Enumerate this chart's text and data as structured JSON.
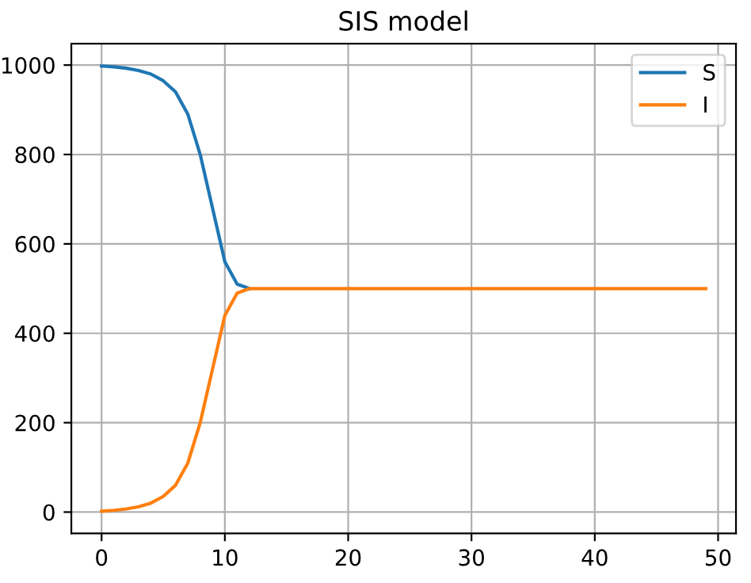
{
  "chart_data": {
    "type": "line",
    "title": "SIS model",
    "x": [
      0,
      1,
      2,
      3,
      4,
      5,
      6,
      7,
      8,
      9,
      10,
      11,
      12,
      13,
      14,
      15,
      16,
      17,
      18,
      19,
      20,
      21,
      22,
      23,
      24,
      25,
      26,
      27,
      28,
      29,
      30,
      31,
      32,
      33,
      34,
      35,
      36,
      37,
      38,
      39,
      40,
      41,
      42,
      43,
      44,
      45,
      46,
      47,
      48,
      49
    ],
    "series": [
      {
        "name": "S",
        "color": "#1f77b4",
        "values": [
          998,
          996,
          993,
          988,
          980,
          965,
          940,
          890,
          800,
          680,
          560,
          510,
          500,
          null,
          null,
          null,
          null,
          null,
          null,
          null,
          null,
          null,
          null,
          null,
          null,
          null,
          null,
          null,
          null,
          null,
          null,
          null,
          null,
          null,
          null,
          null,
          null,
          null,
          null,
          null,
          null,
          null,
          null,
          null,
          null,
          null,
          null,
          null,
          null,
          null
        ]
      },
      {
        "name": "I",
        "color": "#ff7f0e",
        "values": [
          2,
          4,
          7,
          12,
          20,
          35,
          60,
          110,
          200,
          320,
          440,
          490,
          500,
          500,
          500,
          500,
          500,
          500,
          500,
          500,
          500,
          500,
          500,
          500,
          500,
          500,
          500,
          500,
          500,
          500,
          500,
          500,
          500,
          500,
          500,
          500,
          500,
          500,
          500,
          500,
          500,
          500,
          500,
          500,
          500,
          500,
          500,
          500,
          500,
          500
        ]
      }
    ],
    "xlim": [
      -2.45,
      51.45
    ],
    "ylim": [
      -47.8,
      1047.8
    ],
    "xticks": [
      0,
      10,
      20,
      30,
      40,
      50
    ],
    "yticks": [
      0,
      200,
      400,
      600,
      800,
      1000
    ],
    "grid": true,
    "legend": "top right",
    "marker": "none",
    "line_style": "solid"
  }
}
